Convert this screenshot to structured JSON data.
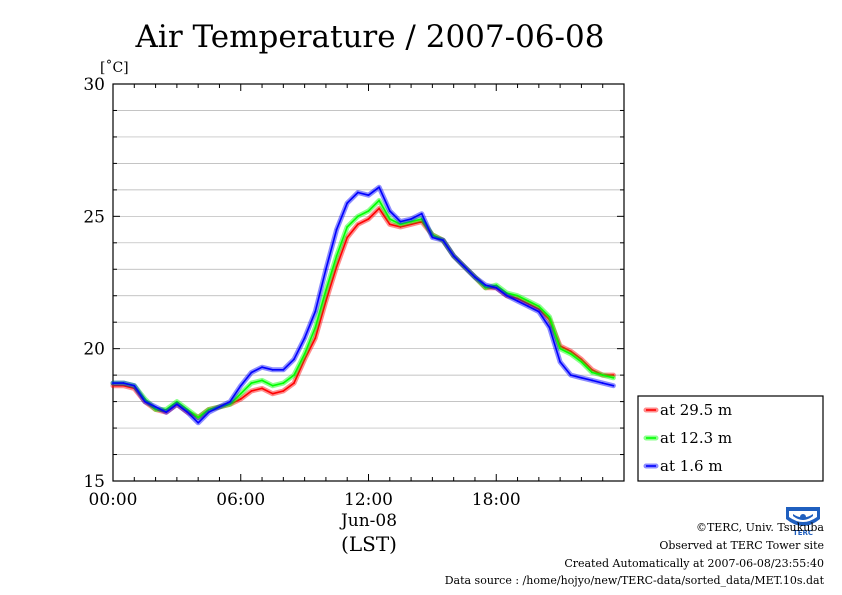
{
  "chart_data": {
    "type": "line",
    "title": "Air Temperature / 2007-06-08",
    "ylabel": "[˚C]",
    "xlabel": "(LST)",
    "date_label": "Jun-08",
    "ylim": [
      15,
      30
    ],
    "xlim": [
      0,
      24
    ],
    "y_ticks": [
      "15",
      "20",
      "25",
      "30"
    ],
    "x_ticks": [
      "00:00",
      "06:00",
      "12:00",
      "18:00"
    ],
    "x_tick_hours": [
      0,
      6,
      12,
      18
    ],
    "grid": true,
    "legend_position": "right",
    "x": [
      0.0,
      0.5,
      1.0,
      1.5,
      2.0,
      2.5,
      3.0,
      3.5,
      4.0,
      4.5,
      5.0,
      5.5,
      6.0,
      6.5,
      7.0,
      7.5,
      8.0,
      8.5,
      9.0,
      9.5,
      10.0,
      10.5,
      11.0,
      11.5,
      12.0,
      12.5,
      13.0,
      13.5,
      14.0,
      14.5,
      15.0,
      15.5,
      16.0,
      16.5,
      17.0,
      17.5,
      18.0,
      18.5,
      19.0,
      19.5,
      20.0,
      20.5,
      21.0,
      21.5,
      22.0,
      22.5,
      23.0,
      23.5
    ],
    "series": [
      {
        "name": "at 29.5 m",
        "color": "#ff0000",
        "values": [
          18.6,
          18.6,
          18.5,
          18.0,
          17.7,
          17.6,
          17.9,
          17.6,
          17.4,
          17.7,
          17.8,
          17.9,
          18.1,
          18.4,
          18.5,
          18.3,
          18.4,
          18.7,
          19.6,
          20.4,
          21.8,
          23.1,
          24.2,
          24.7,
          24.9,
          25.3,
          24.7,
          24.6,
          24.7,
          24.8,
          24.3,
          24.1,
          23.5,
          23.1,
          22.7,
          22.3,
          22.3,
          22.0,
          21.9,
          21.7,
          21.5,
          21.1,
          20.1,
          19.9,
          19.6,
          19.2,
          19.0,
          19.0
        ]
      },
      {
        "name": "at 12.3 m",
        "color": "#00ff00",
        "values": [
          18.7,
          18.7,
          18.6,
          18.1,
          17.7,
          17.7,
          18.0,
          17.7,
          17.4,
          17.7,
          17.8,
          17.9,
          18.3,
          18.7,
          18.8,
          18.6,
          18.7,
          19.0,
          19.8,
          20.8,
          22.2,
          23.5,
          24.6,
          25.0,
          25.2,
          25.6,
          24.9,
          24.7,
          24.8,
          24.9,
          24.3,
          24.1,
          23.5,
          23.1,
          22.7,
          22.3,
          22.4,
          22.1,
          22.0,
          21.8,
          21.6,
          21.2,
          20.0,
          19.8,
          19.5,
          19.1,
          19.0,
          18.9
        ]
      },
      {
        "name": "at 1.6 m",
        "color": "#0000ff",
        "values": [
          18.7,
          18.7,
          18.6,
          18.0,
          17.8,
          17.6,
          17.9,
          17.6,
          17.2,
          17.6,
          17.8,
          18.0,
          18.6,
          19.1,
          19.3,
          19.2,
          19.2,
          19.6,
          20.4,
          21.4,
          23.0,
          24.5,
          25.5,
          25.9,
          25.8,
          26.1,
          25.2,
          24.8,
          24.9,
          25.1,
          24.2,
          24.1,
          23.5,
          23.1,
          22.7,
          22.4,
          22.3,
          22.0,
          21.8,
          21.6,
          21.4,
          20.8,
          19.5,
          19.0,
          18.9,
          18.8,
          18.7,
          18.6
        ]
      }
    ]
  },
  "footer": {
    "copyright": "©TERC, Univ. Tsukuba",
    "observed": "Observed at TERC Tower site",
    "created": "Created Automatically at 2007-06-08/23:55:40",
    "source": "Data source : /home/hojyo/new/TERC-data/sorted_data/MET.10s.dat"
  },
  "logo_text": "TERC"
}
